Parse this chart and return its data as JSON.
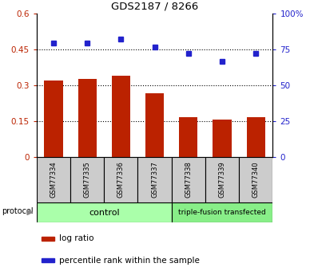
{
  "title": "GDS2187 / 8266",
  "samples": [
    "GSM77334",
    "GSM77335",
    "GSM77336",
    "GSM77337",
    "GSM77338",
    "GSM77339",
    "GSM77340"
  ],
  "log_ratio": [
    0.32,
    0.325,
    0.34,
    0.265,
    0.165,
    0.155,
    0.165
  ],
  "percentile_rank": [
    0.795,
    0.795,
    0.825,
    0.77,
    0.72,
    0.665,
    0.72
  ],
  "bar_color": "#bb2200",
  "dot_color": "#2222cc",
  "left_ylim": [
    0,
    0.6
  ],
  "right_ylim": [
    0,
    1.0
  ],
  "left_yticks": [
    0,
    0.15,
    0.3,
    0.45,
    0.6
  ],
  "left_yticklabels": [
    "0",
    "0.15",
    "0.3",
    "0.45",
    "0.6"
  ],
  "right_yticks": [
    0,
    0.25,
    0.5,
    0.75,
    1.0
  ],
  "right_yticklabels": [
    "0",
    "25",
    "50",
    "75",
    "100%"
  ],
  "hlines": [
    0.15,
    0.3,
    0.45
  ],
  "control_samples": 4,
  "control_label": "control",
  "treatment_label": "triple-fusion transfected",
  "protocol_label": "protocol",
  "legend_bar_label": "log ratio",
  "legend_dot_label": "percentile rank within the sample",
  "control_color": "#aaffaa",
  "treatment_color": "#88ee88",
  "sample_box_color": "#cccccc",
  "background_color": "#ffffff"
}
